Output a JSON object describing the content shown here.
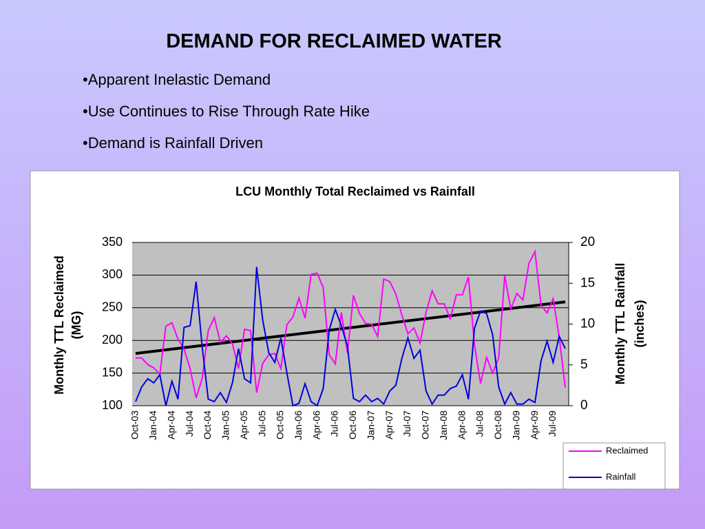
{
  "header": {
    "title": "DEMAND FOR RECLAIMED WATER",
    "bullets": [
      "•Apparent Inelastic Demand",
      "•Use Continues to Rise Through Rate Hike",
      "•Demand is Rainfall Driven"
    ]
  },
  "chart_data": {
    "type": "line",
    "title": "LCU Monthly Total Reclaimed vs Rainfall",
    "ylabel": [
      "Monthly TTL Reclaimed",
      "(MG)"
    ],
    "y2label": [
      "Monthly TTL Rainfall",
      "(inches)"
    ],
    "categories": [
      "Oct-03",
      null,
      null,
      "Jan-04",
      null,
      null,
      "Apr-04",
      null,
      null,
      "Jul-04",
      null,
      null,
      "Oct-04",
      null,
      null,
      "Jan-05",
      null,
      null,
      "Apr-05",
      null,
      null,
      "Jul-05",
      null,
      null,
      "Oct-05",
      null,
      null,
      "Jan-06",
      null,
      null,
      "Apr-06",
      null,
      null,
      "Jul-06",
      null,
      null,
      "Oct-06",
      null,
      null,
      "Jan-07",
      null,
      null,
      "Apr-07",
      null,
      null,
      "Jul-07",
      null,
      null,
      "Oct-07",
      null,
      null,
      "Jan-08",
      null,
      null,
      "Apr-08",
      null,
      null,
      "Jul-08",
      null,
      null,
      "Oct-08",
      null,
      null,
      "Jan-09",
      null,
      null,
      "Apr-09",
      null,
      null,
      "Jul-09",
      null,
      null
    ],
    "series": [
      {
        "name": "Reclaimed",
        "color": "#ff00ff",
        "values": [
          173,
          173,
          163,
          158,
          148,
          222,
          227,
          202,
          187,
          157,
          112,
          142,
          215,
          235,
          197,
          207,
          195,
          157,
          217,
          215,
          120,
          165,
          178,
          180,
          157,
          224,
          236,
          265,
          234,
          301,
          303,
          281,
          178,
          164,
          243,
          181,
          269,
          241,
          226,
          225,
          206,
          294,
          290,
          271,
          239,
          210,
          219,
          196,
          243,
          276,
          256,
          256,
          233,
          270,
          270,
          297,
          193,
          134,
          174,
          150,
          173,
          299,
          248,
          272,
          262,
          318,
          336,
          254,
          242,
          264,
          205,
          128
        ]
      },
      {
        "name": "Rainfall",
        "color": "#0000dd",
        "axis": "y2",
        "values": [
          0.5,
          2.3,
          3.3,
          2.8,
          3.8,
          0,
          3,
          0.8,
          9.6,
          9.8,
          15.2,
          7.2,
          0.8,
          0.5,
          1.6,
          0.4,
          2.8,
          7,
          3.3,
          2.8,
          17,
          10.5,
          6.5,
          5.3,
          8.3,
          4,
          0,
          0.3,
          2.7,
          0.5,
          0,
          2.1,
          9.3,
          11.8,
          9.8,
          7.3,
          0.9,
          0.5,
          1.3,
          0.5,
          0.9,
          0.2,
          1.8,
          2.5,
          5.8,
          8.3,
          5.8,
          6.8,
          1.8,
          0.2,
          1.3,
          1.3,
          2.1,
          2.4,
          3.8,
          0.8,
          9.5,
          11.6,
          11.3,
          8.7,
          2.3,
          0.2,
          1.6,
          0.2,
          0.2,
          0.8,
          0.4,
          5.5,
          7.9,
          5.3,
          8.5,
          7
        ]
      }
    ],
    "trendline": {
      "color": "#000000",
      "values": [
        180,
        259
      ]
    },
    "ylim": [
      100,
      350
    ],
    "yticks": [
      100,
      150,
      200,
      250,
      300,
      350
    ],
    "y2lim": [
      0,
      20
    ],
    "y2ticks": [
      0,
      5,
      10,
      15,
      20
    ],
    "grid": true,
    "legend": "lower right"
  }
}
